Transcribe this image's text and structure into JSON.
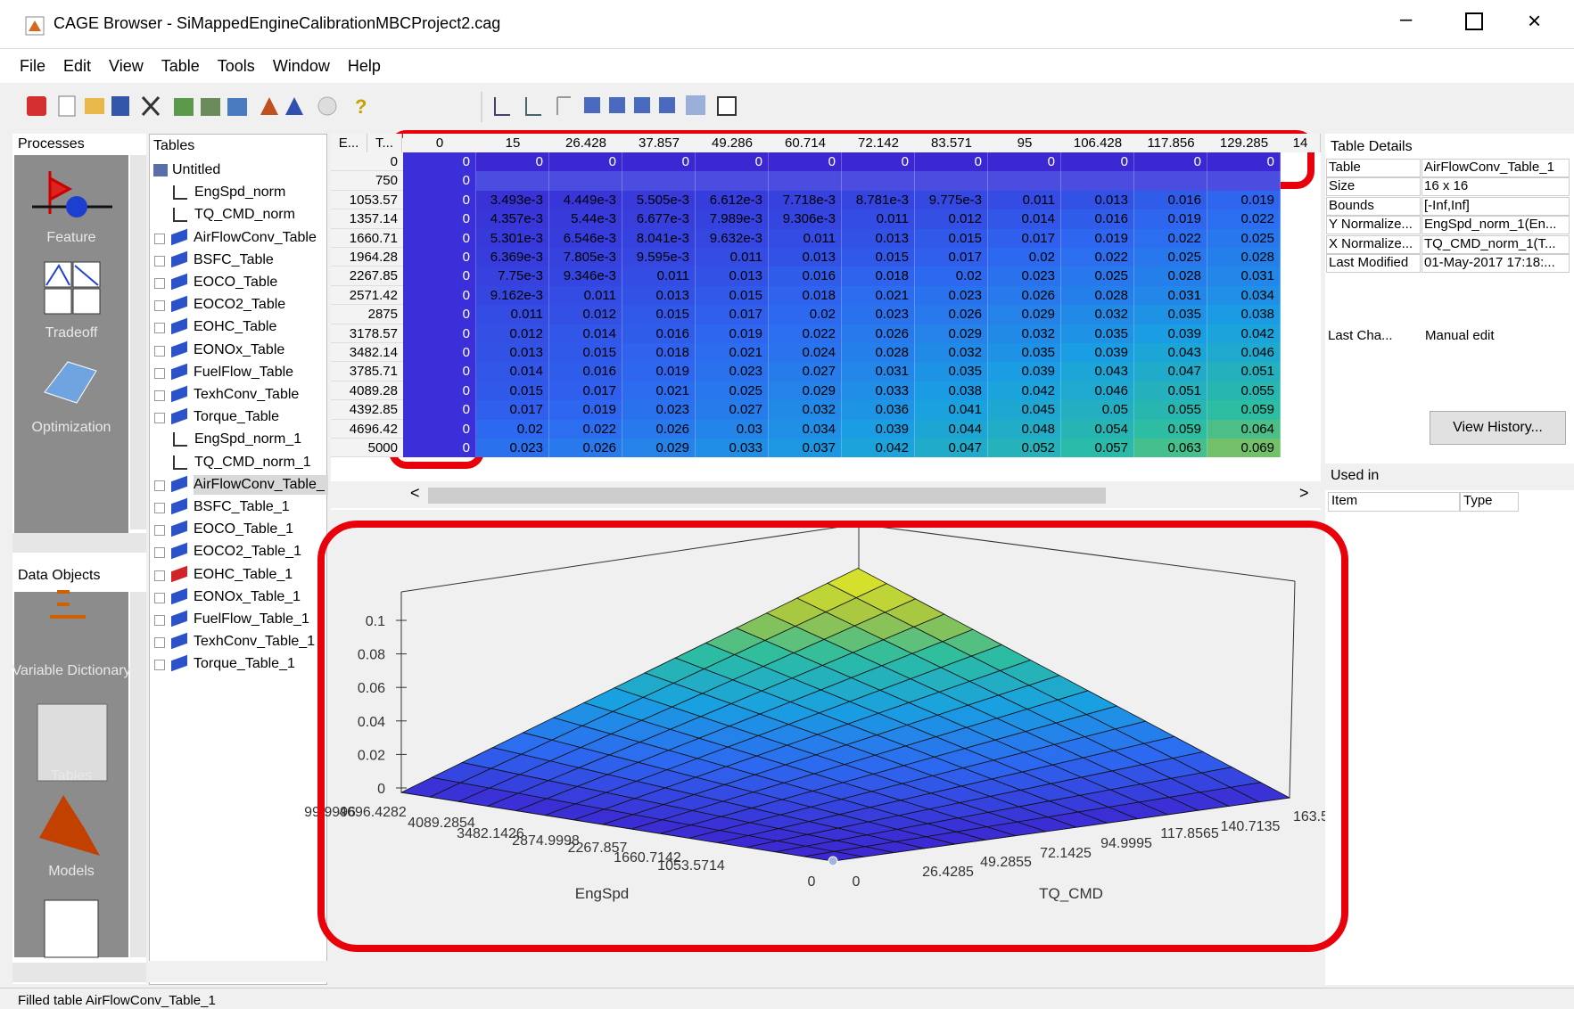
{
  "window": {
    "title": "CAGE Browser - SiMappedEngineCalibrationMBCProject2.cag"
  },
  "menu": [
    "File",
    "Edit",
    "View",
    "Table",
    "Tools",
    "Window",
    "Help"
  ],
  "processes": {
    "title": "Processes",
    "items": [
      "Feature",
      "Tradeoff",
      "Optimization"
    ]
  },
  "data_objects": {
    "title": "Data Objects",
    "items": [
      "Variable Dictionary",
      "Tables",
      "Models"
    ]
  },
  "tables": {
    "title": "Tables",
    "items": [
      "Untitled",
      "EngSpd_norm",
      "TQ_CMD_norm",
      "AirFlowConv_Table",
      "BSFC_Table",
      "EOCO_Table",
      "EOCO2_Table",
      "EOHC_Table",
      "EONOx_Table",
      "FuelFlow_Table",
      "TexhConv_Table",
      "Torque_Table",
      "EngSpd_norm_1",
      "TQ_CMD_norm_1",
      "AirFlowConv_Table_",
      "BSFC_Table_1",
      "EOCO_Table_1",
      "EOCO2_Table_1",
      "EOHC_Table_1",
      "EONOx_Table_1",
      "FuelFlow_Table_1",
      "TexhConv_Table_1",
      "Torque_Table_1"
    ]
  },
  "grid": {
    "corner": [
      "E...",
      "T..."
    ],
    "columns": [
      "0",
      "15",
      "26.428",
      "37.857",
      "49.286",
      "60.714",
      "72.142",
      "83.571",
      "95",
      "106.428",
      "117.856",
      "129.285",
      "14"
    ],
    "rows": [
      {
        "header": "0",
        "cells": [
          "0",
          "0",
          "0",
          "0",
          "0",
          "0",
          "0",
          "0",
          "0",
          "0",
          "0",
          "0"
        ]
      },
      {
        "header": "750",
        "cells": [
          "0",
          null,
          null,
          null,
          null,
          null,
          null,
          null,
          null,
          null,
          null,
          null
        ]
      },
      {
        "header": "1053.57",
        "cells": [
          "0",
          "3.493e-3",
          "4.449e-3",
          "5.505e-3",
          "6.612e-3",
          "7.718e-3",
          "8.781e-3",
          "9.775e-3",
          "0.011",
          "0.013",
          "0.016",
          "0.019"
        ]
      },
      {
        "header": "1357.14",
        "cells": [
          "0",
          "4.357e-3",
          "5.44e-3",
          "6.677e-3",
          "7.989e-3",
          "9.306e-3",
          "0.011",
          "0.012",
          "0.014",
          "0.016",
          "0.019",
          "0.022"
        ]
      },
      {
        "header": "1660.71",
        "cells": [
          "0",
          "5.301e-3",
          "6.546e-3",
          "8.041e-3",
          "9.632e-3",
          "0.011",
          "0.013",
          "0.015",
          "0.017",
          "0.019",
          "0.022",
          "0.025"
        ]
      },
      {
        "header": "1964.28",
        "cells": [
          "0",
          "6.369e-3",
          "7.805e-3",
          "9.595e-3",
          "0.011",
          "0.013",
          "0.015",
          "0.017",
          "0.02",
          "0.022",
          "0.025",
          "0.028"
        ]
      },
      {
        "header": "2267.85",
        "cells": [
          "0",
          "7.75e-3",
          "9.346e-3",
          "0.011",
          "0.013",
          "0.016",
          "0.018",
          "0.02",
          "0.023",
          "0.025",
          "0.028",
          "0.031"
        ]
      },
      {
        "header": "2571.42",
        "cells": [
          "0",
          "9.162e-3",
          "0.011",
          "0.013",
          "0.015",
          "0.018",
          "0.021",
          "0.023",
          "0.026",
          "0.028",
          "0.031",
          "0.034"
        ]
      },
      {
        "header": "2875",
        "cells": [
          "0",
          "0.011",
          "0.012",
          "0.015",
          "0.017",
          "0.02",
          "0.023",
          "0.026",
          "0.029",
          "0.032",
          "0.035",
          "0.038"
        ]
      },
      {
        "header": "3178.57",
        "cells": [
          "0",
          "0.012",
          "0.014",
          "0.016",
          "0.019",
          "0.022",
          "0.026",
          "0.029",
          "0.032",
          "0.035",
          "0.039",
          "0.042"
        ]
      },
      {
        "header": "3482.14",
        "cells": [
          "0",
          "0.013",
          "0.015",
          "0.018",
          "0.021",
          "0.024",
          "0.028",
          "0.032",
          "0.035",
          "0.039",
          "0.043",
          "0.046"
        ]
      },
      {
        "header": "3785.71",
        "cells": [
          "0",
          "0.014",
          "0.016",
          "0.019",
          "0.023",
          "0.027",
          "0.031",
          "0.035",
          "0.039",
          "0.043",
          "0.047",
          "0.051"
        ]
      },
      {
        "header": "4089.28",
        "cells": [
          "0",
          "0.015",
          "0.017",
          "0.021",
          "0.025",
          "0.029",
          "0.033",
          "0.038",
          "0.042",
          "0.046",
          "0.051",
          "0.055"
        ]
      },
      {
        "header": "4392.85",
        "cells": [
          "0",
          "0.017",
          "0.019",
          "0.023",
          "0.027",
          "0.032",
          "0.036",
          "0.041",
          "0.045",
          "0.05",
          "0.055",
          "0.059"
        ]
      },
      {
        "header": "4696.42",
        "cells": [
          "0",
          "0.02",
          "0.022",
          "0.026",
          "0.03",
          "0.034",
          "0.039",
          "0.044",
          "0.048",
          "0.054",
          "0.059",
          "0.064"
        ]
      },
      {
        "header": "5000",
        "cells": [
          "0",
          "0.023",
          "0.026",
          "0.029",
          "0.033",
          "0.037",
          "0.042",
          "0.047",
          "0.052",
          "0.057",
          "0.063",
          "0.069"
        ]
      }
    ]
  },
  "plot": {
    "zticks": [
      "0.1",
      "0.08",
      "0.06",
      "0.04",
      "0.02",
      "0"
    ],
    "x_label": "EngSpd",
    "x_ticks": [
      "99.9996",
      "4696.4282",
      "4089.2854",
      "3482.1426",
      "2874.9998",
      "2267.857",
      "1660.7142",
      "1053.5714",
      "0"
    ],
    "y_label": "TQ_CMD",
    "y_ticks": [
      "0",
      "26.4285",
      "49.2855",
      "72.1425",
      "94.9995",
      "117.8565",
      "140.7135",
      "163.5"
    ]
  },
  "details": {
    "title": "Table Details",
    "rows": [
      [
        "Table",
        "AirFlowConv_Table_1"
      ],
      [
        "Size",
        "16 x 16"
      ],
      [
        "Bounds",
        "[-Inf,Inf]"
      ],
      [
        "Y Normalize...",
        "EngSpd_norm_1(En..."
      ],
      [
        "X Normalize...",
        "TQ_CMD_norm_1(T..."
      ],
      [
        "Last Modified",
        "01-May-2017 17:18:..."
      ]
    ],
    "last_change": [
      "Last Cha...",
      "Manual edit"
    ],
    "button": "View History...",
    "used_in": {
      "title": "Used in",
      "columns": [
        "Item",
        "Type"
      ]
    }
  },
  "status": "Filled table AirFlowConv_Table_1"
}
